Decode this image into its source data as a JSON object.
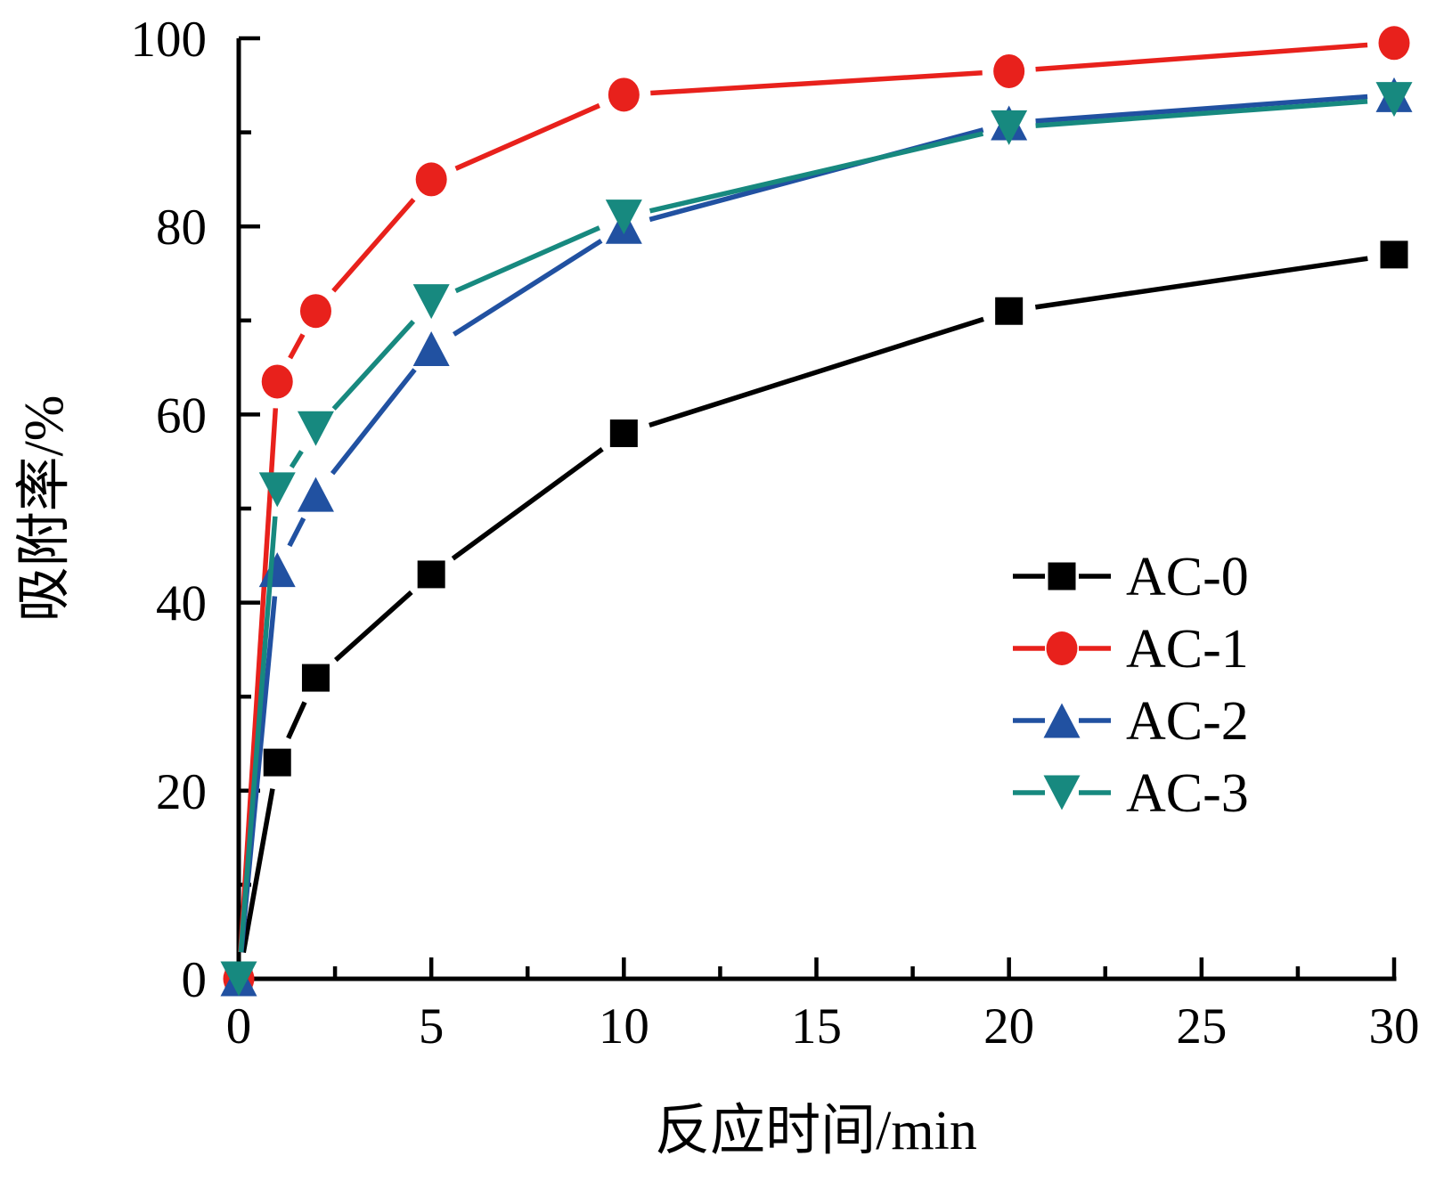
{
  "figure": {
    "background": "#ffffff",
    "axis_color": "#000000"
  },
  "chart_data": {
    "type": "line",
    "title": "",
    "xlabel": "反应时间/min",
    "ylabel": "吸附率/%",
    "xlim": [
      0,
      30
    ],
    "ylim": [
      0,
      100
    ],
    "x_major_ticks": [
      0,
      5,
      10,
      15,
      20,
      25,
      30
    ],
    "x_minor_ticks": [
      2.5,
      7.5,
      12.5,
      17.5,
      22.5,
      27.5
    ],
    "y_major_ticks": [
      0,
      20,
      40,
      60,
      80,
      100
    ],
    "y_minor_ticks": [
      10,
      30,
      50,
      70,
      90
    ],
    "grid": false,
    "legend_position": "inside lower right",
    "x": [
      0,
      1,
      2,
      5,
      10,
      20,
      30
    ],
    "series": [
      {
        "name": "AC-0",
        "color": "#000000",
        "marker": "square",
        "values": [
          0,
          23,
          32,
          43,
          58,
          71,
          77
        ]
      },
      {
        "name": "AC-1",
        "color": "#e8211c",
        "marker": "circle",
        "values": [
          0,
          63.5,
          71,
          85,
          94,
          96.5,
          99.5
        ]
      },
      {
        "name": "AC-2",
        "color": "#2151a1",
        "marker": "triangle-up",
        "values": [
          0,
          43.5,
          51.5,
          67,
          80,
          91,
          94
        ]
      },
      {
        "name": "AC-3",
        "color": "#17897f",
        "marker": "triangle-down",
        "values": [
          0,
          52,
          58.5,
          72,
          81,
          90.5,
          93.5
        ]
      }
    ]
  }
}
